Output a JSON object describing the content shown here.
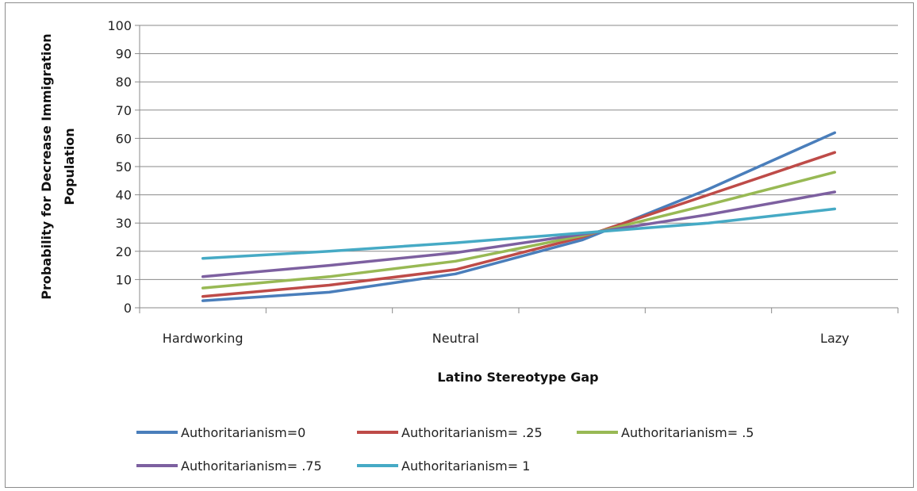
{
  "chart_data": {
    "type": "line",
    "xlabel": "Latino Stereotype Gap",
    "ylabel_lines": [
      "Probability for Decrease Immigration",
      "Population"
    ],
    "x_tick_labels": [
      {
        "label": "Hardworking",
        "at": 0
      },
      {
        "label": "Neutral",
        "at": 2
      },
      {
        "label": "Lazy",
        "at": 5
      }
    ],
    "x": [
      0,
      1,
      2,
      3,
      4,
      5
    ],
    "ylim": [
      0,
      100
    ],
    "yticks": [
      0,
      10,
      20,
      30,
      40,
      50,
      60,
      70,
      80,
      90,
      100
    ],
    "grid": true,
    "legend_position": "bottom",
    "series": [
      {
        "name": "Authoritarianism=0",
        "color": "#4a7ebb",
        "values": [
          2.5,
          5.5,
          12,
          24,
          42,
          62
        ]
      },
      {
        "name": "Authoritarianism= .25",
        "color": "#be4b48",
        "values": [
          4,
          8,
          13.5,
          25,
          40,
          55
        ]
      },
      {
        "name": "Authoritarianism= .5",
        "color": "#98b954",
        "values": [
          7,
          11,
          16.5,
          25.5,
          36.5,
          48
        ]
      },
      {
        "name": "Authoritarianism= .75",
        "color": "#7d60a0",
        "values": [
          11,
          15,
          19.5,
          26,
          33,
          41
        ]
      },
      {
        "name": "Authoritarianism= 1",
        "color": "#46aac5",
        "values": [
          17.5,
          20,
          23,
          26.5,
          30,
          35
        ]
      }
    ]
  }
}
